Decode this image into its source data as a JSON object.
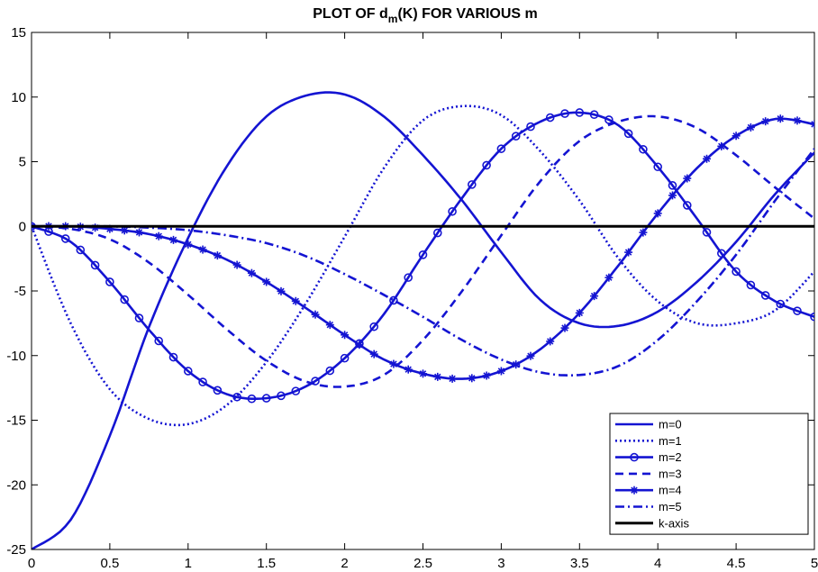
{
  "chart_data": {
    "type": "line",
    "title": {
      "main": "PLOT OF d",
      "sub": "m",
      "rest": "(K) FOR VARIOUS m"
    },
    "xlabel": "",
    "ylabel": "",
    "xlim": [
      0,
      5
    ],
    "ylim": [
      -25,
      15
    ],
    "xticks": [
      0,
      0.5,
      1,
      1.5,
      2,
      2.5,
      3,
      3.5,
      4,
      4.5,
      5
    ],
    "xtick_labels": [
      "0",
      "0.5",
      "1",
      "1.5",
      "2",
      "2.5",
      "3",
      "3.5",
      "4",
      "4.5",
      "5"
    ],
    "yticks": [
      -25,
      -20,
      -15,
      -10,
      -5,
      0,
      5,
      10,
      15
    ],
    "ytick_labels": [
      "-25",
      "-20",
      "-15",
      "-10",
      "-5",
      "0",
      "5",
      "10",
      "15"
    ],
    "grid": false,
    "legend_position": "bottom-right",
    "colors": {
      "series": "#1414d2",
      "axis_line": "#000000"
    },
    "x": [
      0,
      0.25,
      0.5,
      0.75,
      1,
      1.25,
      1.5,
      1.75,
      2,
      2.25,
      2.5,
      2.75,
      3,
      3.25,
      3.5,
      3.75,
      4,
      4.25,
      4.5,
      4.75,
      5
    ],
    "series": [
      {
        "name": "m=0",
        "style": "solid",
        "marker": "none",
        "values": [
          -25,
          -22.7,
          -16.2,
          -7.8,
          -0.9,
          4.7,
          8.5,
          10.1,
          10.2,
          8.5,
          5.5,
          2,
          -2,
          -5.7,
          -7.5,
          -7.7,
          -6.6,
          -4.3,
          -1.2,
          2.5,
          5.7
        ]
      },
      {
        "name": "m=1",
        "style": "dotted",
        "marker": "none",
        "values": [
          0,
          -7.5,
          -12.6,
          -14.9,
          -15.3,
          -13.8,
          -10.5,
          -6,
          -0.8,
          4.5,
          8.2,
          9.3,
          8.6,
          5.8,
          2,
          -2.5,
          -5.8,
          -7.5,
          -7.5,
          -6.5,
          -3.5
        ]
      },
      {
        "name": "m=2",
        "style": "solid",
        "marker": "circle",
        "values": [
          0,
          -1.2,
          -4.3,
          -8,
          -11.2,
          -13,
          -13.3,
          -12.4,
          -10.2,
          -6.8,
          -2.2,
          2.2,
          6,
          8.1,
          8.8,
          7.8,
          4.6,
          0.6,
          -3.5,
          -5.8,
          -7
        ]
      },
      {
        "name": "m=3",
        "style": "dashed",
        "marker": "none",
        "values": [
          0,
          -0.2,
          -1,
          -2.8,
          -5.3,
          -8,
          -10.4,
          -12,
          -12.4,
          -11.5,
          -8.8,
          -5,
          -0.7,
          3.5,
          6.6,
          8.1,
          8.5,
          7.6,
          5.5,
          3,
          0.6
        ]
      },
      {
        "name": "m=4",
        "style": "solid",
        "marker": "asterisk",
        "values": [
          0,
          0,
          -0.2,
          -0.6,
          -1.4,
          -2.6,
          -4.3,
          -6.3,
          -8.4,
          -10.3,
          -11.4,
          -11.8,
          -11.2,
          -9.5,
          -6.7,
          -3,
          1,
          4.5,
          7,
          8.3,
          7.9
        ]
      },
      {
        "name": "m=5",
        "style": "dashdot",
        "marker": "none",
        "values": [
          0,
          0,
          0,
          -0.1,
          -0.3,
          -0.7,
          -1.3,
          -2.3,
          -3.7,
          -5.3,
          -7,
          -8.8,
          -10.3,
          -11.3,
          -11.5,
          -10.8,
          -8.8,
          -5.8,
          -2.2,
          2,
          6
        ]
      },
      {
        "name": "k-axis",
        "style": "solid-black",
        "marker": "none",
        "values": [
          0,
          0,
          0,
          0,
          0,
          0,
          0,
          0,
          0,
          0,
          0,
          0,
          0,
          0,
          0,
          0,
          0,
          0,
          0,
          0,
          0
        ]
      }
    ]
  }
}
